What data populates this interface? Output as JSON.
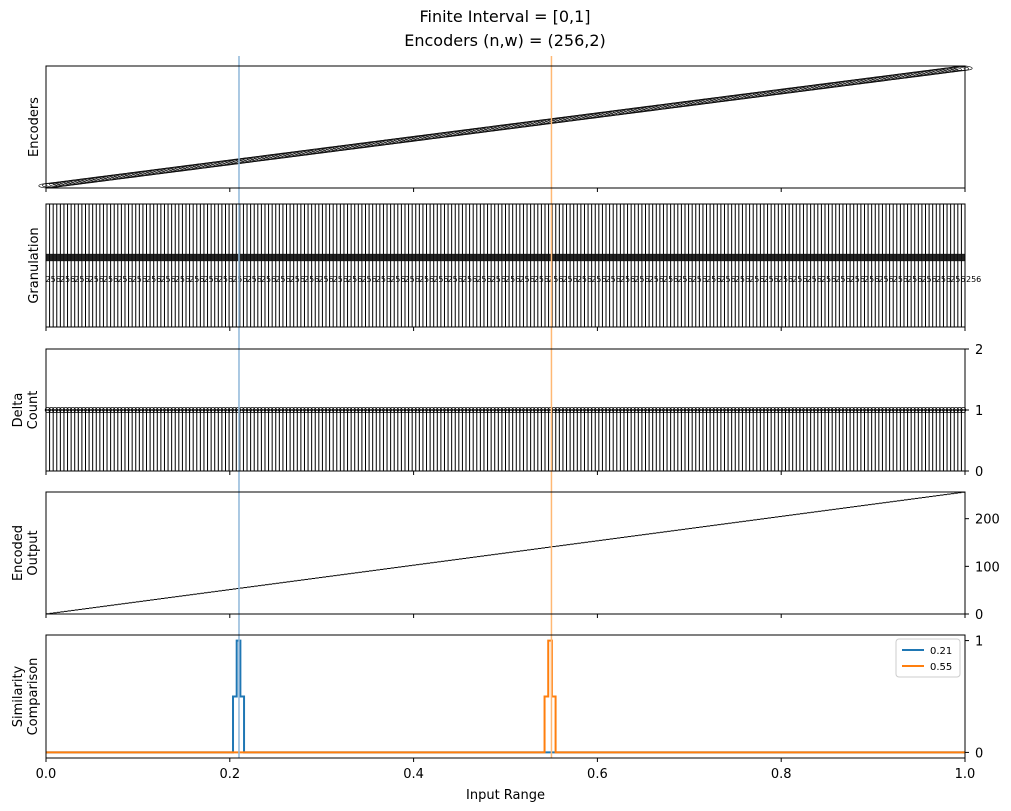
{
  "figure": {
    "title_line1": "Finite Interval = [0,1]",
    "title_line2": "Encoders (n,w) = (256,2)"
  },
  "colors": {
    "series_021": "#1f77b4",
    "series_055": "#ff7f0e",
    "marker_021": "#8fb7d9",
    "marker_055": "#ffb874",
    "ink": "#000000"
  },
  "chart_data": [
    {
      "type": "line",
      "panel": "encoders",
      "ylabel": "Encoders",
      "xlim": [
        0,
        1
      ],
      "n": 256,
      "w": 2,
      "x_ticks_shown": false,
      "y_ticks_shown": false,
      "grid": false
    },
    {
      "type": "bar",
      "panel": "granulation",
      "ylabel": "Granulation",
      "xlim": [
        0,
        1
      ],
      "bins": 256,
      "cell_label": "256",
      "grid": false
    },
    {
      "type": "bar",
      "panel": "delta-count",
      "ylabel": [
        "Delta",
        "Count"
      ],
      "xlim": [
        0,
        1
      ],
      "ylim": [
        0,
        2
      ],
      "y_ticks": [
        0,
        1,
        2
      ],
      "bins": 256,
      "value": 1,
      "grid": false
    },
    {
      "type": "scatter",
      "panel": "encoded-output",
      "ylabel": [
        "Encoded",
        "Output"
      ],
      "xlim": [
        0,
        1
      ],
      "ylim": [
        0,
        256
      ],
      "y_ticks": [
        0,
        100,
        200
      ],
      "grid": false
    },
    {
      "type": "line",
      "panel": "similarity-comparison",
      "ylabel": [
        "Similarity",
        "Comparison"
      ],
      "xlabel": "Input Range",
      "xlim": [
        0,
        1
      ],
      "ylim": [
        -0.05,
        1.05
      ],
      "x_ticks": [
        "0.0",
        "0.2",
        "0.4",
        "0.6",
        "0.8",
        "1.0"
      ],
      "y_ticks": [
        0,
        1
      ],
      "legend_position": "top-right",
      "grid": false,
      "series": [
        {
          "name": "0.21",
          "color": "#1f77b4",
          "marker_x": 0.21,
          "x": [
            0,
            0.2035,
            0.2035,
            0.2075,
            0.2075,
            0.2115,
            0.2115,
            0.2155,
            0.2155,
            1
          ],
          "y": [
            0,
            0,
            0.5,
            0.5,
            1,
            1,
            0.5,
            0.5,
            0,
            0
          ]
        },
        {
          "name": "0.55",
          "color": "#ff7f0e",
          "marker_x": 0.55,
          "x": [
            0,
            0.5425,
            0.5425,
            0.5465,
            0.5465,
            0.5505,
            0.5505,
            0.5545,
            0.5545,
            1
          ],
          "y": [
            0,
            0,
            0.5,
            0.5,
            1,
            1,
            0.5,
            0.5,
            0,
            0
          ]
        }
      ]
    }
  ]
}
